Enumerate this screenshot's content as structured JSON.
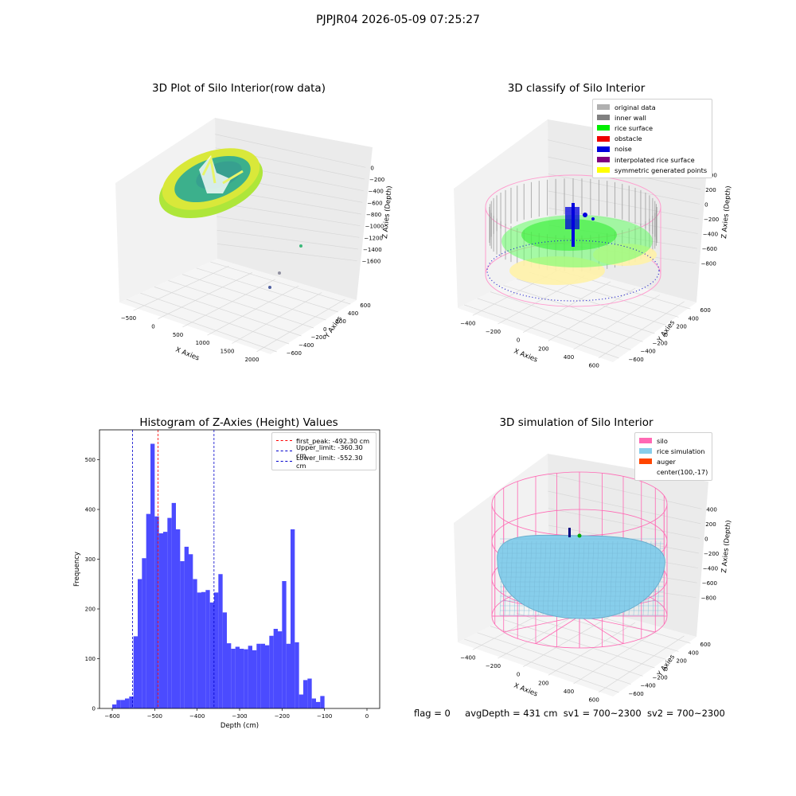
{
  "suptitle": "PJPJR04 2026-05-09 07:25:27",
  "panels": {
    "raw": {
      "title": "3D Plot of Silo Interior(row data)",
      "xlabel": "X Axies",
      "ylabel": "Y Axies",
      "zlabel": "Z Axies (Depth)",
      "xticks": [
        "−500",
        "0",
        "500",
        "1000",
        "1500",
        "2000"
      ],
      "yticks": [
        "600",
        "400",
        "200",
        "0",
        "−200",
        "−400",
        "−600"
      ],
      "zticks": [
        "0",
        "−200",
        "−400",
        "−600",
        "−800",
        "−1000",
        "−1200",
        "−1400",
        "−1600"
      ]
    },
    "classify": {
      "title": "3D classify of Silo Interior",
      "xlabel": "X Axies",
      "ylabel": "Y Axies",
      "zlabel": "Z Axies (Depth)",
      "xticks": [
        "−400",
        "−200",
        "0",
        "200",
        "400",
        "600"
      ],
      "yticks": [
        "600",
        "400",
        "200",
        "0",
        "−200",
        "−400",
        "−600"
      ],
      "zticks": [
        "400",
        "200",
        "0",
        "−200",
        "−400",
        "−600",
        "−800"
      ],
      "legend": [
        {
          "label": "original data",
          "color": "#b0b0b0"
        },
        {
          "label": "inner wall",
          "color": "#808080"
        },
        {
          "label": "rice surface",
          "color": "#00ee00"
        },
        {
          "label": "obstacle",
          "color": "#ee0000"
        },
        {
          "label": "noise",
          "color": "#0000dd"
        },
        {
          "label": "interpolated rice surface",
          "color": "#800080"
        },
        {
          "label": "symmetric generated points",
          "color": "#ffff00"
        }
      ]
    },
    "simulation": {
      "title": "3D simulation of Silo Interior",
      "xlabel": "X Axies",
      "ylabel": "Y Axies",
      "zlabel": "Z Axies (Depth)",
      "xticks": [
        "−400",
        "−200",
        "0",
        "200",
        "400",
        "600"
      ],
      "yticks": [
        "600",
        "400",
        "200",
        "0",
        "−200",
        "−400",
        "−600"
      ],
      "zticks": [
        "400",
        "200",
        "0",
        "−200",
        "−400",
        "−600",
        "−800"
      ],
      "legend": [
        {
          "label": "silo",
          "color": "#ff69b4"
        },
        {
          "label": "rice simulation",
          "color": "#87ceeb"
        },
        {
          "label": "auger",
          "color": "#ff4500"
        },
        {
          "label": "center(100,-17)",
          "color": ""
        }
      ]
    }
  },
  "chart_data": {
    "type": "bar",
    "title": "Histogram of Z-Axies (Height) Values",
    "xlabel": "Depth (cm)",
    "ylabel": "Frequency",
    "xlim": [
      -630,
      30
    ],
    "ylim": [
      0,
      560
    ],
    "xticks": [
      -600,
      -500,
      -400,
      -300,
      -200,
      -100,
      0
    ],
    "yticks": [
      0,
      100,
      200,
      300,
      400,
      500
    ],
    "bin_start": -600,
    "bin_width": 10,
    "values": [
      8,
      17,
      17,
      20,
      24,
      145,
      260,
      302,
      391,
      532,
      386,
      352,
      355,
      383,
      413,
      360,
      296,
      325,
      310,
      260,
      233,
      234,
      238,
      213,
      233,
      270,
      193,
      131,
      120,
      124,
      120,
      119,
      126,
      117,
      130,
      130,
      127,
      146,
      160,
      155,
      256,
      130,
      360,
      133,
      28,
      57,
      60,
      20,
      13,
      25
    ],
    "bar_color": "#4b4bff",
    "lines": [
      {
        "label": "first_peak: -492.30 cm",
        "x": -492.3,
        "color": "#ff0000"
      },
      {
        "label": "Upper_limit: -360.30 cm",
        "x": -360.3,
        "color": "#0000cc"
      },
      {
        "label": "Lower_limit: -552.30 cm",
        "x": -552.3,
        "color": "#0000cc"
      }
    ]
  },
  "footer": {
    "flag": "flag = 0",
    "avg": "avgDepth = 431 cm",
    "sv1": "sv1 = 700~2300",
    "sv2": "sv2 = 700~2300"
  }
}
